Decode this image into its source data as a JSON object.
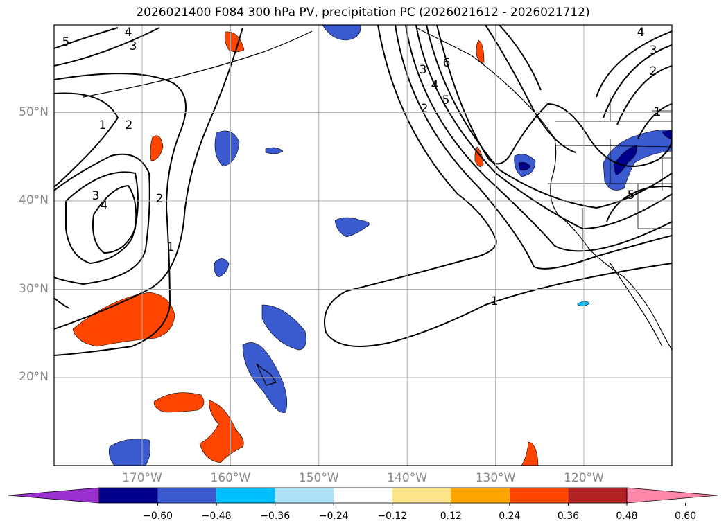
{
  "title": "2026021400 F084 300 hPa PV, precipitation PC (2026021612 - 2026021712)",
  "map": {
    "lat_ticks": [
      {
        "label": "50°N",
        "lat": 50
      },
      {
        "label": "40°N",
        "lat": 40
      },
      {
        "label": "30°N",
        "lat": 30
      },
      {
        "label": "20°N",
        "lat": 20
      }
    ],
    "lon_ticks": [
      {
        "label": "170°W",
        "lon": -170
      },
      {
        "label": "160°W",
        "lon": -160
      },
      {
        "label": "150°W",
        "lon": -150
      },
      {
        "label": "140°W",
        "lon": -140
      },
      {
        "label": "130°W",
        "lon": -130
      },
      {
        "label": "120°W",
        "lon": -120
      }
    ],
    "contour_labels": [
      "5",
      "4",
      "3",
      "2",
      "1",
      "3",
      "4",
      "2",
      "1",
      "3",
      "4",
      "5",
      "2",
      "6",
      "4",
      "3",
      "2",
      "1",
      "5",
      "1"
    ]
  },
  "colorbar": {
    "colors": [
      "#9b30d0",
      "#00008b",
      "#3a5bd0",
      "#00bfff",
      "#aee3f7",
      "#ffffff",
      "#fde68a",
      "#ffa500",
      "#ff4500",
      "#b22222",
      "#ff88aa"
    ],
    "labels": [
      "−0.60",
      "−0.48",
      "−0.36",
      "−0.24",
      "−0.12",
      "0.12",
      "0.24",
      "0.36",
      "0.48",
      "0.60"
    ]
  }
}
